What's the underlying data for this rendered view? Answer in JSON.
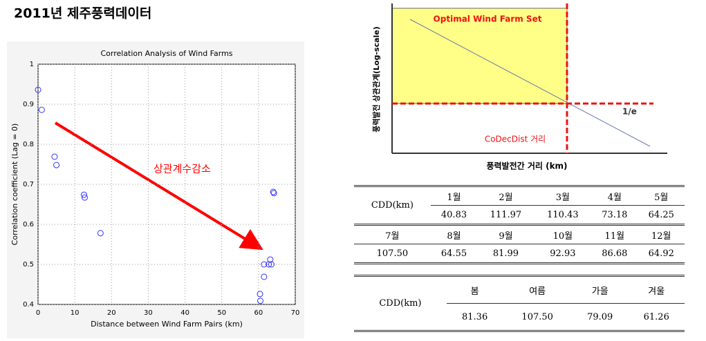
{
  "title": "2011년 제주풍력데이터",
  "chart_data": {
    "type": "scatter",
    "title": "Correlation Analysis of Wind Farms",
    "xlabel": "Distance between Wind Farm Pairs (km)",
    "ylabel": "Correlation coefficient (Lag = 0)",
    "annotation": "상관계수감소",
    "x": [
      0,
      1,
      4.5,
      5,
      12.5,
      12.7,
      17,
      60.4,
      60.5,
      61.5,
      61.5,
      62.8,
      63.2,
      63.5,
      64,
      64.2
    ],
    "values": [
      0.936,
      0.886,
      0.769,
      0.748,
      0.674,
      0.667,
      0.578,
      0.426,
      0.409,
      0.5,
      0.469,
      0.5,
      0.512,
      0.5,
      0.681,
      0.678
    ],
    "color": "#3333ff",
    "xlim": [
      0,
      70
    ],
    "xticks": [
      0,
      10,
      20,
      30,
      40,
      50,
      60,
      70
    ],
    "ylim": [
      0.4,
      1
    ],
    "yticks": [
      0.4,
      0.5,
      0.6,
      0.7,
      0.8,
      0.9,
      1
    ],
    "grid": true
  },
  "diagram": {
    "box_label": "Optimal Wind Farm Set",
    "threshold_label": "1/e",
    "distance_label": "CoDecDist 거리",
    "xlabel": "풍력발전간 거리 (km)",
    "ylabel": "풍력발전 상관관계(Log-scale)"
  },
  "table1": {
    "row_header": "CDD(km)",
    "months1": [
      "1월",
      "2월",
      "3월",
      "4월",
      "5월"
    ],
    "values1": [
      "40.83",
      "111.97",
      "110.43",
      "73.18",
      "64.25"
    ],
    "months2": [
      "7월",
      "8월",
      "9월",
      "10월",
      "11월",
      "12월"
    ],
    "values2": [
      "107.50",
      "64.55",
      "81.99",
      "92.93",
      "86.68",
      "64.92"
    ]
  },
  "table2": {
    "row_header": "CDD(km)",
    "seasons": [
      "봄",
      "여름",
      "가을",
      "겨울"
    ],
    "values": [
      "81.36",
      "107.50",
      "79.09",
      "61.26"
    ]
  }
}
